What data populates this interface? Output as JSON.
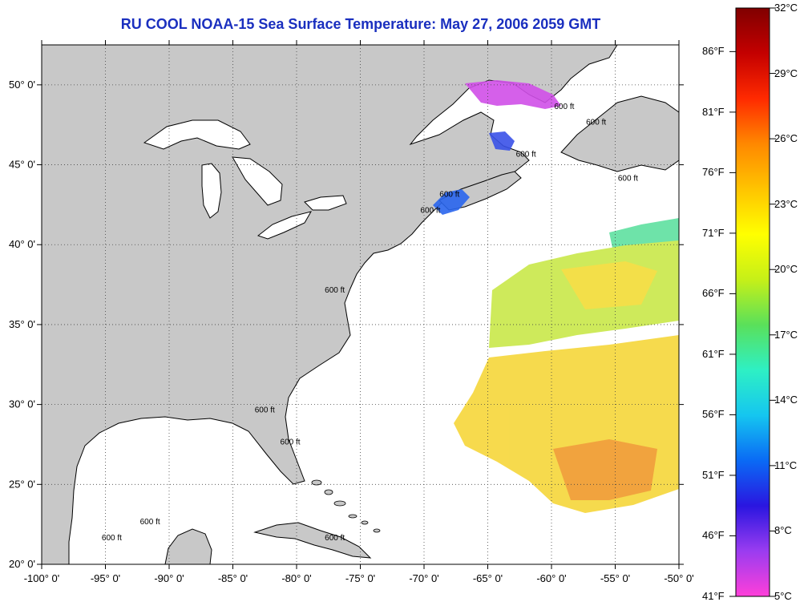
{
  "title": "RU COOL  NOAA-15  Sea Surface Temperature:  May 27, 2006 2059 GMT",
  "map": {
    "lon_range": [
      -100,
      -50
    ],
    "lat_range": [
      20,
      52.5
    ],
    "lat_ticks": [
      {
        "value": 50,
        "label": "50° 0'"
      },
      {
        "value": 45,
        "label": "45° 0'"
      },
      {
        "value": 40,
        "label": "40° 0'"
      },
      {
        "value": 35,
        "label": "35° 0'"
      },
      {
        "value": 30,
        "label": "30° 0'"
      },
      {
        "value": 25,
        "label": "25° 0'"
      },
      {
        "value": 20,
        "label": "20° 0'"
      }
    ],
    "lon_ticks": [
      {
        "value": -100,
        "label": "-100° 0'"
      },
      {
        "value": -95,
        "label": "-95° 0'"
      },
      {
        "value": -90,
        "label": "-90° 0'"
      },
      {
        "value": -85,
        "label": "-85° 0'"
      },
      {
        "value": -80,
        "label": "-80° 0'"
      },
      {
        "value": -75,
        "label": "-75° 0'"
      },
      {
        "value": -70,
        "label": "-70° 0'"
      },
      {
        "value": -65,
        "label": "-65° 0'"
      },
      {
        "value": -60,
        "label": "-60° 0'"
      },
      {
        "value": -55,
        "label": "-55° 0'"
      },
      {
        "value": -50,
        "label": "-50° 0'"
      }
    ],
    "grid": "dotted",
    "land_color": "#c8c8c8",
    "water_color": "#ffffff",
    "isobath_label": "600 ft",
    "isobath_points": [
      {
        "lon": -77,
        "lat": 37
      },
      {
        "lon": -82.5,
        "lat": 29.5
      },
      {
        "lon": -80.5,
        "lat": 27.5
      },
      {
        "lon": -94.5,
        "lat": 21.5
      },
      {
        "lon": -91.5,
        "lat": 22.5
      },
      {
        "lon": -77,
        "lat": 21.5
      },
      {
        "lon": -69.5,
        "lat": 42
      },
      {
        "lon": -68,
        "lat": 43
      },
      {
        "lon": -62,
        "lat": 45.5
      },
      {
        "lon": -59,
        "lat": 48.5
      },
      {
        "lon": -56.5,
        "lat": 47.5
      },
      {
        "lon": -54,
        "lat": 44
      }
    ]
  },
  "colorbar": {
    "celsius": [
      "32°C",
      "29°C",
      "26°C",
      "23°C",
      "20°C",
      "17°C",
      "14°C",
      "11°C",
      "8°C",
      "5°C"
    ],
    "fahrenheit": [
      "86°F",
      "81°F",
      "76°F",
      "71°F",
      "66°F",
      "61°F",
      "56°F",
      "51°F",
      "46°F",
      "41°F"
    ],
    "fahrenheit_values": [
      86,
      81,
      76,
      71,
      66,
      61,
      56,
      51,
      46,
      41
    ],
    "c_min": 5,
    "c_max": 32,
    "stops": [
      "#ff3fd9",
      "#9a3cf0",
      "#2a16e0",
      "#0a6af5",
      "#15c6f0",
      "#2ef0c4",
      "#5ae05a",
      "#c6f018",
      "#ffff00",
      "#ffc400",
      "#ff8800",
      "#ff2a00",
      "#c40000",
      "#800000"
    ]
  }
}
